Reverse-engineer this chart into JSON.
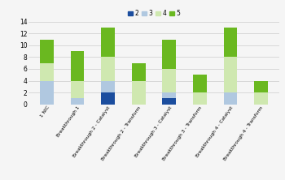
{
  "categories": [
    "1 NIC",
    "Breakthrough 1",
    "Breakthrough 2 - Catalyst",
    "Breakthrough 2 - Transform",
    "Breakthrough 3 - Catalyst",
    "Breakthrough 3 - Transform",
    "Breakthrough 4 - Catalyst",
    "Breakthrough 4 - Transform"
  ],
  "series": {
    "2": [
      0,
      0,
      2,
      0,
      1,
      0,
      0,
      0
    ],
    "3": [
      4,
      1,
      2,
      0,
      1,
      0,
      2,
      0
    ],
    "4": [
      3,
      3,
      4,
      4,
      4,
      2,
      6,
      2
    ],
    "5": [
      4,
      5,
      5,
      3,
      5,
      3,
      5,
      2
    ]
  },
  "colors": {
    "2": "#1b4d9e",
    "3": "#b0c8e0",
    "4": "#cfe8b0",
    "5": "#6ab820"
  },
  "ylim": [
    0,
    14
  ],
  "yticks": [
    0,
    2,
    4,
    6,
    8,
    10,
    12,
    14
  ],
  "background_color": "#f5f5f5",
  "grid_color": "#cccccc",
  "legend_labels": [
    "2",
    "3",
    "4",
    "5"
  ]
}
